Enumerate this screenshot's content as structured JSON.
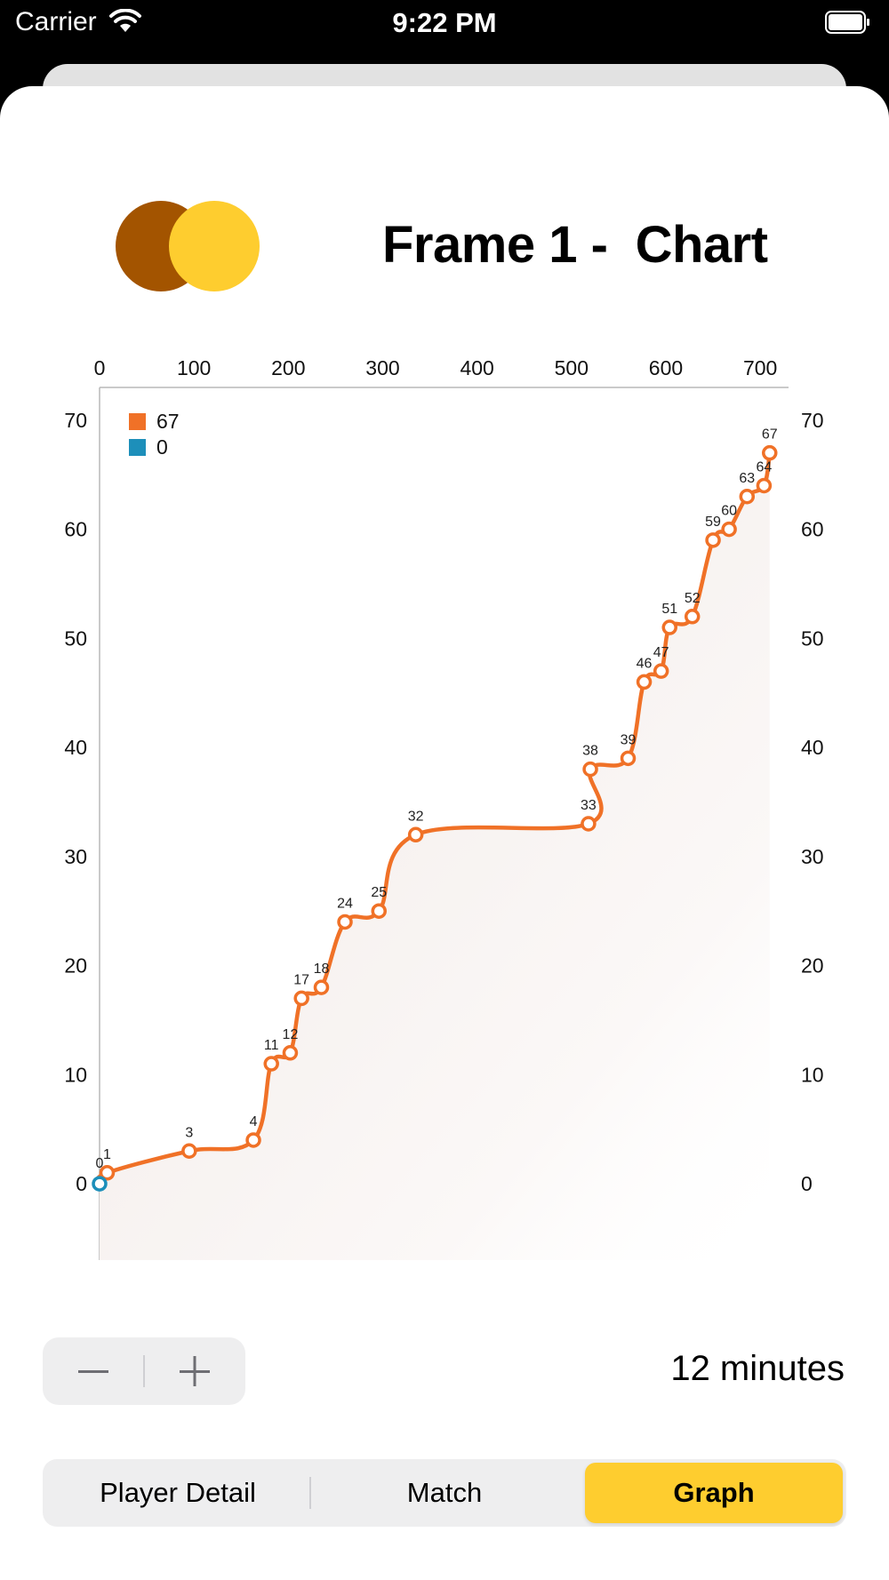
{
  "status_bar": {
    "carrier": "Carrier",
    "time": "9:22 PM"
  },
  "header": {
    "title": "Frame 1 -  Chart"
  },
  "logo": {
    "colors": [
      "#a35400",
      "#fecd2f"
    ]
  },
  "chart_data": {
    "type": "line",
    "xlim": [
      0,
      730
    ],
    "ylim": [
      -7,
      73
    ],
    "x_ticks": [
      0,
      100,
      200,
      300,
      400,
      500,
      600,
      700
    ],
    "y_ticks": [
      0,
      10,
      20,
      30,
      40,
      50,
      60,
      70
    ],
    "legend": {
      "position": "top-left"
    },
    "series": [
      {
        "name": "67",
        "color": "#f07127",
        "points": [
          {
            "x": 8,
            "y": 1,
            "label": "1"
          },
          {
            "x": 95,
            "y": 3,
            "label": "3"
          },
          {
            "x": 163,
            "y": 4,
            "label": "4"
          },
          {
            "x": 182,
            "y": 11,
            "label": "11"
          },
          {
            "x": 202,
            "y": 12,
            "label": "12"
          },
          {
            "x": 214,
            "y": 17,
            "label": "17"
          },
          {
            "x": 235,
            "y": 18,
            "label": "18"
          },
          {
            "x": 260,
            "y": 24,
            "label": "24"
          },
          {
            "x": 296,
            "y": 25,
            "label": "25"
          },
          {
            "x": 335,
            "y": 32,
            "label": "32"
          },
          {
            "x": 518,
            "y": 33,
            "label": "33"
          },
          {
            "x": 520,
            "y": 38,
            "label": "38"
          },
          {
            "x": 560,
            "y": 39,
            "label": "39"
          },
          {
            "x": 577,
            "y": 46,
            "label": "46"
          },
          {
            "x": 595,
            "y": 47,
            "label": "47"
          },
          {
            "x": 604,
            "y": 51,
            "label": "51"
          },
          {
            "x": 628,
            "y": 52,
            "label": "52"
          },
          {
            "x": 650,
            "y": 59,
            "label": "59"
          },
          {
            "x": 667,
            "y": 60,
            "label": "60"
          },
          {
            "x": 686,
            "y": 63,
            "label": "63"
          },
          {
            "x": 704,
            "y": 64,
            "label": "64"
          },
          {
            "x": 710,
            "y": 67,
            "label": "67"
          }
        ]
      },
      {
        "name": "0",
        "color": "#1d8fba",
        "points": [
          {
            "x": 0,
            "y": 0,
            "label": "0"
          }
        ]
      }
    ]
  },
  "controls": {
    "duration_label": "12 minutes"
  },
  "tabs": [
    {
      "label": "Player Detail"
    },
    {
      "label": "Match"
    },
    {
      "label": "Graph",
      "selected": true
    }
  ],
  "colors": {
    "accent": "#fecd2f",
    "line": "#f07127",
    "secondary_series": "#1d8fba"
  }
}
